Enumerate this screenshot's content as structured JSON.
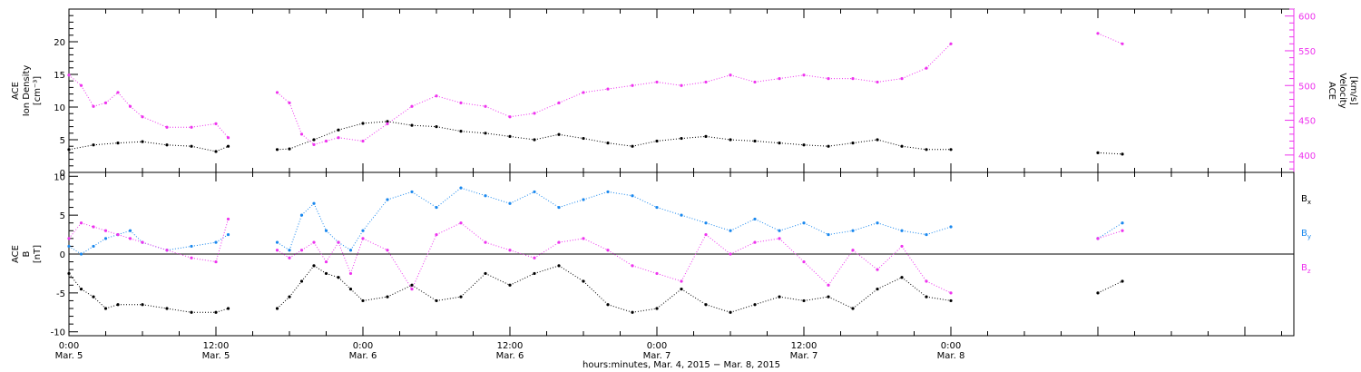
{
  "figure": {
    "xlabel": "hours:minutes, Mar. 4, 2015 − Mar. 8, 2015"
  },
  "colors": {
    "density": "#000000",
    "velocity": "#ee33ee",
    "bx": "#000000",
    "by": "#1a88ee",
    "bz": "#ee33ee"
  },
  "chart_data": [
    {
      "type": "scatter",
      "panel": "top",
      "ylabel_left": [
        "ACE",
        "Ion Density",
        "[cm⁻³]"
      ],
      "ylabel_right": [
        "ACE",
        "Velocity",
        "[km/s]"
      ],
      "xlim_hours": [
        0,
        100
      ],
      "ylim_left": [
        0,
        25
      ],
      "ylim_right": [
        375,
        610
      ],
      "yticks_left": [
        0,
        5,
        10,
        15,
        20
      ],
      "yticks_right": [
        400,
        450,
        500,
        550,
        600
      ],
      "series": [
        {
          "key": "density",
          "axis": "left",
          "x_hours": [
            0,
            2,
            4,
            6,
            8,
            10,
            12,
            13,
            17,
            18,
            20,
            22,
            24,
            26,
            28,
            30,
            32,
            34,
            36,
            38,
            40,
            42,
            44,
            46,
            48,
            50,
            52,
            54,
            56,
            58,
            60,
            62,
            64,
            66,
            68,
            70,
            72,
            84,
            86
          ],
          "values": [
            3.5,
            4.2,
            4.5,
            4.7,
            4.2,
            4.0,
            3.2,
            4.0,
            3.5,
            3.6,
            5.0,
            6.5,
            7.5,
            7.8,
            7.2,
            7.0,
            6.3,
            6.0,
            5.5,
            5.0,
            5.8,
            5.2,
            4.5,
            4.0,
            4.8,
            5.2,
            5.5,
            5.0,
            4.8,
            4.5,
            4.2,
            4.0,
            4.5,
            5.0,
            4.0,
            3.5,
            3.5,
            3.0,
            2.8
          ]
        },
        {
          "key": "velocity",
          "axis": "right",
          "x_hours": [
            0,
            1,
            2,
            3,
            4,
            5,
            6,
            8,
            10,
            12,
            13,
            17,
            18,
            19,
            20,
            21,
            22,
            24,
            26,
            28,
            30,
            32,
            34,
            36,
            38,
            40,
            42,
            44,
            46,
            48,
            50,
            52,
            54,
            56,
            58,
            60,
            62,
            64,
            66,
            68,
            70,
            72,
            84,
            86
          ],
          "values": [
            515,
            500,
            470,
            475,
            490,
            470,
            455,
            440,
            440,
            445,
            425,
            490,
            475,
            430,
            415,
            420,
            425,
            420,
            445,
            470,
            485,
            475,
            470,
            455,
            460,
            475,
            490,
            495,
            500,
            505,
            500,
            505,
            515,
            505,
            510,
            515,
            510,
            510,
            505,
            510,
            525,
            560,
            575,
            560
          ]
        }
      ]
    },
    {
      "type": "scatter",
      "panel": "bottom",
      "ylabel_left": [
        "ACE",
        "B",
        "[nT]"
      ],
      "xlim_hours": [
        0,
        100
      ],
      "ylim": [
        -10.5,
        10.5
      ],
      "yticks": [
        -10,
        -5,
        0,
        5,
        10
      ],
      "x_tick_labels": [
        {
          "time": "0:00",
          "date": "Mar. 5",
          "hours": 0
        },
        {
          "time": "12:00",
          "date": "Mar. 5",
          "hours": 12
        },
        {
          "time": "0:00",
          "date": "Mar. 6",
          "hours": 24
        },
        {
          "time": "12:00",
          "date": "Mar. 6",
          "hours": 36
        },
        {
          "time": "0:00",
          "date": "Mar. 7",
          "hours": 48
        },
        {
          "time": "12:00",
          "date": "Mar. 7",
          "hours": 60
        },
        {
          "time": "0:00",
          "date": "Mar. 8",
          "hours": 72
        }
      ],
      "series": [
        {
          "key": "bx",
          "name": "B",
          "sub": "x",
          "x_hours": [
            0,
            1,
            2,
            3,
            4,
            6,
            8,
            10,
            12,
            13,
            17,
            18,
            19,
            20,
            21,
            22,
            23,
            24,
            26,
            28,
            30,
            32,
            34,
            36,
            38,
            40,
            42,
            44,
            46,
            48,
            50,
            52,
            54,
            56,
            58,
            60,
            62,
            64,
            66,
            68,
            70,
            72,
            84,
            86
          ],
          "values": [
            -2.5,
            -4.5,
            -5.5,
            -7.0,
            -6.5,
            -6.5,
            -7.0,
            -7.5,
            -7.5,
            -7.0,
            -7.0,
            -5.5,
            -3.5,
            -1.5,
            -2.5,
            -3.0,
            -4.5,
            -6.0,
            -5.5,
            -4.0,
            -6.0,
            -5.5,
            -2.5,
            -4.0,
            -2.5,
            -1.5,
            -3.5,
            -6.5,
            -7.5,
            -7.0,
            -4.5,
            -6.5,
            -7.5,
            -6.5,
            -5.5,
            -6.0,
            -5.5,
            -7.0,
            -4.5,
            -3.0,
            -5.5,
            -6.0,
            -5.0,
            -3.5
          ]
        },
        {
          "key": "by",
          "name": "B",
          "sub": "y",
          "x_hours": [
            0,
            1,
            2,
            3,
            4,
            5,
            6,
            8,
            10,
            12,
            13,
            17,
            18,
            19,
            20,
            21,
            22,
            23,
            24,
            26,
            28,
            30,
            32,
            34,
            36,
            38,
            40,
            42,
            44,
            46,
            48,
            50,
            52,
            54,
            56,
            58,
            60,
            62,
            64,
            66,
            68,
            70,
            72,
            84,
            86
          ],
          "values": [
            1.0,
            0.0,
            1.0,
            2.0,
            2.5,
            3.0,
            1.5,
            0.5,
            1.0,
            1.5,
            2.5,
            1.5,
            0.5,
            5.0,
            6.5,
            3.0,
            1.5,
            0.5,
            3.0,
            7.0,
            8.0,
            6.0,
            8.5,
            7.5,
            6.5,
            8.0,
            6.0,
            7.0,
            8.0,
            7.5,
            6.0,
            5.0,
            4.0,
            3.0,
            4.5,
            3.0,
            4.0,
            2.5,
            3.0,
            4.0,
            3.0,
            2.5,
            3.5,
            2.0,
            4.0
          ]
        },
        {
          "key": "bz",
          "name": "B",
          "sub": "z",
          "x_hours": [
            0,
            1,
            2,
            3,
            4,
            5,
            6,
            8,
            10,
            12,
            13,
            17,
            18,
            19,
            20,
            21,
            22,
            23,
            24,
            26,
            28,
            30,
            32,
            34,
            36,
            38,
            40,
            42,
            44,
            46,
            48,
            50,
            52,
            54,
            56,
            58,
            60,
            62,
            64,
            66,
            68,
            70,
            72,
            84,
            86
          ],
          "values": [
            2.0,
            4.0,
            3.5,
            3.0,
            2.5,
            2.0,
            1.5,
            0.5,
            -0.5,
            -1.0,
            4.5,
            0.5,
            -0.5,
            0.5,
            1.5,
            -1.0,
            1.5,
            -2.5,
            2.0,
            0.5,
            -4.5,
            2.5,
            4.0,
            1.5,
            0.5,
            -0.5,
            1.5,
            2.0,
            0.5,
            -1.5,
            -2.5,
            -3.5,
            2.5,
            0.0,
            1.5,
            2.0,
            -1.0,
            -4.0,
            0.5,
            -2.0,
            1.0,
            -3.5,
            -5.0,
            2.0,
            3.0
          ]
        }
      ]
    }
  ]
}
